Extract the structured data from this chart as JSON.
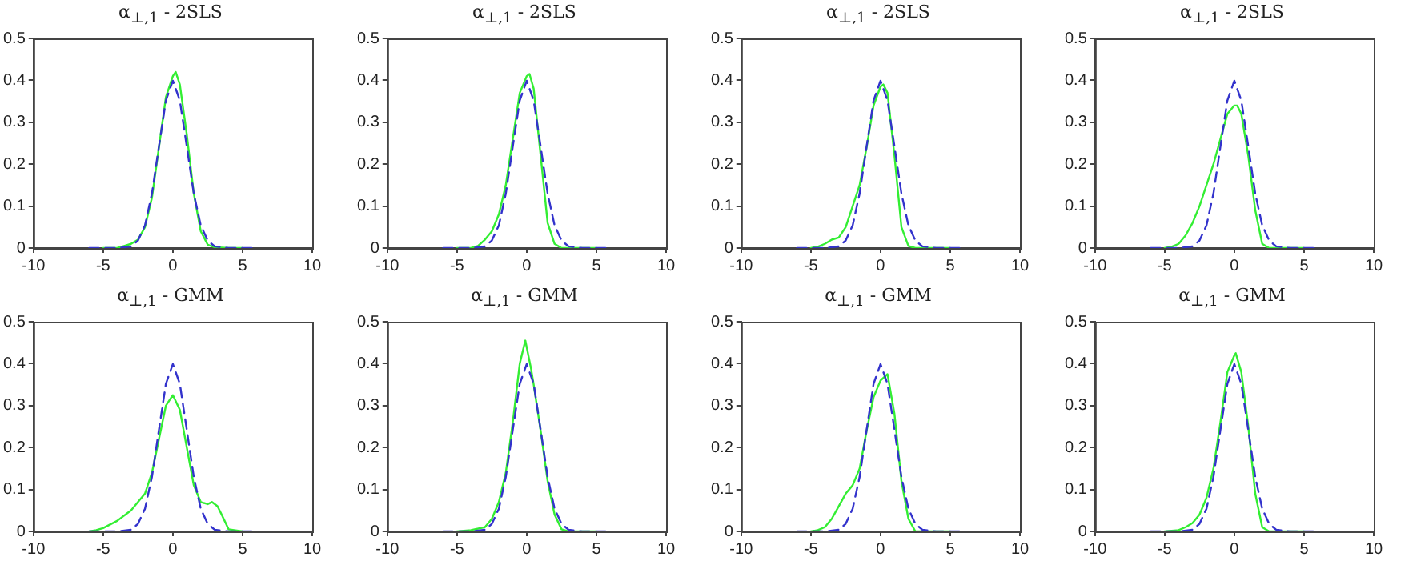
{
  "chart_data": [
    {
      "type": "line",
      "title": "α$_{⊥,1}$ - 2SLS",
      "xlim": [
        -10,
        10
      ],
      "xticks": [
        -10,
        -5,
        0,
        5,
        10
      ],
      "ylim": [
        0,
        0.5
      ],
      "yticks": [
        0,
        0.1,
        0.2,
        0.3,
        0.4,
        0.5
      ],
      "grid": false,
      "marker": "none",
      "series": [
        {
          "color": "#3333cc",
          "line_style": "dashed",
          "x": [
            -6,
            -5,
            -4,
            -3,
            -2.5,
            -2,
            -1.5,
            -1,
            -0.5,
            0,
            0.5,
            1,
            1.5,
            2,
            2.5,
            3,
            4,
            5,
            6
          ],
          "values": [
            0,
            0,
            0,
            0.004,
            0.018,
            0.054,
            0.13,
            0.242,
            0.352,
            0.399,
            0.352,
            0.242,
            0.13,
            0.054,
            0.018,
            0.004,
            0,
            0,
            0
          ]
        },
        {
          "color": "#33ee33",
          "line_style": "solid",
          "x": [
            -5,
            -4,
            -3.5,
            -3,
            -2.5,
            -2,
            -1.5,
            -1,
            -0.5,
            0,
            0.2,
            0.5,
            1,
            1.5,
            2,
            2.5,
            3,
            4,
            5
          ],
          "values": [
            0,
            0,
            0.005,
            0.01,
            0.02,
            0.05,
            0.12,
            0.24,
            0.36,
            0.41,
            0.42,
            0.39,
            0.27,
            0.13,
            0.04,
            0.008,
            0.002,
            0,
            0
          ]
        }
      ]
    },
    {
      "type": "line",
      "title": "α$_{⊥,1}$ - 2SLS",
      "xlim": [
        -10,
        10
      ],
      "xticks": [
        -10,
        -5,
        0,
        5,
        10
      ],
      "ylim": [
        0,
        0.5
      ],
      "yticks": [
        0,
        0.1,
        0.2,
        0.3,
        0.4,
        0.5
      ],
      "grid": false,
      "marker": "none",
      "series": [
        {
          "color": "#3333cc",
          "line_style": "dashed",
          "x": [
            -6,
            -5,
            -4,
            -3,
            -2.5,
            -2,
            -1.5,
            -1,
            -0.5,
            0,
            0.5,
            1,
            1.5,
            2,
            2.5,
            3,
            4,
            5,
            6
          ],
          "values": [
            0,
            0,
            0,
            0.004,
            0.018,
            0.054,
            0.13,
            0.242,
            0.352,
            0.399,
            0.352,
            0.242,
            0.13,
            0.054,
            0.018,
            0.004,
            0,
            0,
            0
          ]
        },
        {
          "color": "#33ee33",
          "line_style": "solid",
          "x": [
            -5,
            -4,
            -3.5,
            -3,
            -2.5,
            -2,
            -1.5,
            -1,
            -0.5,
            0,
            0.2,
            0.5,
            1,
            1.5,
            2,
            2.5,
            3,
            5
          ],
          "values": [
            0,
            0,
            0.005,
            0.02,
            0.04,
            0.08,
            0.15,
            0.26,
            0.37,
            0.41,
            0.415,
            0.38,
            0.22,
            0.06,
            0.01,
            0,
            0,
            0
          ]
        }
      ]
    },
    {
      "type": "line",
      "title": "α$_{⊥,1}$ - 2SLS",
      "xlim": [
        -10,
        10
      ],
      "xticks": [
        -10,
        -5,
        0,
        5,
        10
      ],
      "ylim": [
        0,
        0.5
      ],
      "yticks": [
        0,
        0.1,
        0.2,
        0.3,
        0.4,
        0.5
      ],
      "grid": false,
      "marker": "none",
      "series": [
        {
          "color": "#3333cc",
          "line_style": "dashed",
          "x": [
            -6,
            -5,
            -4,
            -3,
            -2.5,
            -2,
            -1.5,
            -1,
            -0.5,
            0,
            0.5,
            1,
            1.5,
            2,
            2.5,
            3,
            4,
            5,
            6
          ],
          "values": [
            0,
            0,
            0,
            0.004,
            0.018,
            0.054,
            0.13,
            0.242,
            0.352,
            0.399,
            0.352,
            0.242,
            0.13,
            0.054,
            0.018,
            0.004,
            0,
            0,
            0
          ]
        },
        {
          "color": "#33ee33",
          "line_style": "solid",
          "x": [
            -5,
            -4.5,
            -4,
            -3.5,
            -3,
            -2.5,
            -2,
            -1.5,
            -1,
            -0.5,
            0,
            0.2,
            0.5,
            1,
            1.5,
            2,
            2.5,
            5
          ],
          "values": [
            0,
            0.003,
            0.01,
            0.02,
            0.025,
            0.05,
            0.1,
            0.15,
            0.24,
            0.34,
            0.385,
            0.39,
            0.37,
            0.22,
            0.05,
            0.005,
            0,
            0
          ]
        }
      ]
    },
    {
      "type": "line",
      "title": "α$_{⊥,1}$ - 2SLS",
      "xlim": [
        -10,
        10
      ],
      "xticks": [
        -10,
        -5,
        0,
        5,
        10
      ],
      "ylim": [
        0,
        0.5
      ],
      "yticks": [
        0,
        0.1,
        0.2,
        0.3,
        0.4,
        0.5
      ],
      "grid": false,
      "marker": "none",
      "series": [
        {
          "color": "#3333cc",
          "line_style": "dashed",
          "x": [
            -6,
            -5,
            -4,
            -3,
            -2.5,
            -2,
            -1.5,
            -1,
            -0.5,
            0,
            0.5,
            1,
            1.5,
            2,
            2.5,
            3,
            4,
            5,
            6
          ],
          "values": [
            0,
            0,
            0,
            0.004,
            0.018,
            0.054,
            0.13,
            0.242,
            0.352,
            0.399,
            0.352,
            0.242,
            0.13,
            0.054,
            0.018,
            0.004,
            0,
            0,
            0
          ]
        },
        {
          "color": "#33ee33",
          "line_style": "solid",
          "x": [
            -5,
            -4.5,
            -4,
            -3.5,
            -3,
            -2.5,
            -2,
            -1.5,
            -1,
            -0.5,
            0,
            0.2,
            0.5,
            1,
            1.5,
            2,
            2.5,
            5
          ],
          "values": [
            0,
            0.003,
            0.01,
            0.03,
            0.06,
            0.1,
            0.15,
            0.2,
            0.26,
            0.32,
            0.34,
            0.34,
            0.32,
            0.22,
            0.09,
            0.01,
            0,
            0
          ]
        }
      ]
    },
    {
      "type": "line",
      "title": "α$_{⊥,1}$ - GMM",
      "xlim": [
        -10,
        10
      ],
      "xticks": [
        -10,
        -5,
        0,
        5,
        10
      ],
      "ylim": [
        0,
        0.5
      ],
      "yticks": [
        0,
        0.1,
        0.2,
        0.3,
        0.4,
        0.5
      ],
      "grid": false,
      "marker": "none",
      "series": [
        {
          "color": "#3333cc",
          "line_style": "dashed",
          "x": [
            -6,
            -5,
            -4,
            -3,
            -2.5,
            -2,
            -1.5,
            -1,
            -0.5,
            0,
            0.5,
            1,
            1.5,
            2,
            2.5,
            3,
            4,
            5,
            6
          ],
          "values": [
            0,
            0,
            0,
            0.004,
            0.018,
            0.054,
            0.13,
            0.242,
            0.352,
            0.399,
            0.352,
            0.242,
            0.13,
            0.054,
            0.018,
            0.004,
            0,
            0,
            0
          ]
        },
        {
          "color": "#33ee33",
          "line_style": "solid",
          "x": [
            -6,
            -5.5,
            -5,
            -4,
            -3,
            -2.5,
            -2,
            -1.5,
            -1,
            -0.5,
            0,
            0.5,
            1,
            1.5,
            2,
            2.5,
            2.8,
            3.2,
            3.5,
            4,
            5
          ],
          "values": [
            0,
            0.003,
            0.008,
            0.025,
            0.05,
            0.07,
            0.09,
            0.14,
            0.22,
            0.3,
            0.325,
            0.29,
            0.2,
            0.11,
            0.07,
            0.065,
            0.07,
            0.06,
            0.04,
            0.005,
            0
          ]
        }
      ]
    },
    {
      "type": "line",
      "title": "α$_{⊥,1}$ - GMM",
      "xlim": [
        -10,
        10
      ],
      "xticks": [
        -10,
        -5,
        0,
        5,
        10
      ],
      "ylim": [
        0,
        0.5
      ],
      "yticks": [
        0,
        0.1,
        0.2,
        0.3,
        0.4,
        0.5
      ],
      "grid": false,
      "marker": "none",
      "series": [
        {
          "color": "#3333cc",
          "line_style": "dashed",
          "x": [
            -6,
            -5,
            -4,
            -3,
            -2.5,
            -2,
            -1.5,
            -1,
            -0.5,
            0,
            0.5,
            1,
            1.5,
            2,
            2.5,
            3,
            4,
            5,
            6
          ],
          "values": [
            0,
            0,
            0,
            0.004,
            0.018,
            0.054,
            0.13,
            0.242,
            0.352,
            0.399,
            0.352,
            0.242,
            0.13,
            0.054,
            0.018,
            0.004,
            0,
            0,
            0
          ]
        },
        {
          "color": "#33ee33",
          "line_style": "solid",
          "x": [
            -5,
            -4,
            -3,
            -2.5,
            -2,
            -1.5,
            -1,
            -0.5,
            -0.1,
            0.3,
            0.5,
            1,
            1.5,
            2,
            2.5,
            3,
            5
          ],
          "values": [
            0,
            0.003,
            0.01,
            0.03,
            0.07,
            0.14,
            0.26,
            0.4,
            0.455,
            0.39,
            0.35,
            0.24,
            0.12,
            0.04,
            0.005,
            0,
            0
          ]
        }
      ]
    },
    {
      "type": "line",
      "title": "α$_{⊥,1}$ - GMM",
      "xlim": [
        -10,
        10
      ],
      "xticks": [
        -10,
        -5,
        0,
        5,
        10
      ],
      "ylim": [
        0,
        0.5
      ],
      "yticks": [
        0,
        0.1,
        0.2,
        0.3,
        0.4,
        0.5
      ],
      "grid": false,
      "marker": "none",
      "series": [
        {
          "color": "#3333cc",
          "line_style": "dashed",
          "x": [
            -6,
            -5,
            -4,
            -3,
            -2.5,
            -2,
            -1.5,
            -1,
            -0.5,
            0,
            0.5,
            1,
            1.5,
            2,
            2.5,
            3,
            4,
            5,
            6
          ],
          "values": [
            0,
            0,
            0,
            0.004,
            0.018,
            0.054,
            0.13,
            0.242,
            0.352,
            0.399,
            0.352,
            0.242,
            0.13,
            0.054,
            0.018,
            0.004,
            0,
            0,
            0
          ]
        },
        {
          "color": "#33ee33",
          "line_style": "solid",
          "x": [
            -5,
            -4.5,
            -4,
            -3.5,
            -3,
            -2.5,
            -2,
            -1.5,
            -1,
            -0.5,
            0,
            0.5,
            1,
            1.5,
            2,
            2.5,
            5
          ],
          "values": [
            0,
            0.003,
            0.01,
            0.03,
            0.06,
            0.09,
            0.11,
            0.15,
            0.24,
            0.32,
            0.36,
            0.375,
            0.28,
            0.12,
            0.03,
            0,
            0
          ]
        }
      ]
    },
    {
      "type": "line",
      "title": "α$_{⊥,1}$ - GMM",
      "xlim": [
        -10,
        10
      ],
      "xticks": [
        -10,
        -5,
        0,
        5,
        10
      ],
      "ylim": [
        0,
        0.5
      ],
      "yticks": [
        0,
        0.1,
        0.2,
        0.3,
        0.4,
        0.5
      ],
      "grid": false,
      "marker": "none",
      "series": [
        {
          "color": "#3333cc",
          "line_style": "dashed",
          "x": [
            -6,
            -5,
            -4,
            -3,
            -2.5,
            -2,
            -1.5,
            -1,
            -0.5,
            0,
            0.5,
            1,
            1.5,
            2,
            2.5,
            3,
            4,
            5,
            6
          ],
          "values": [
            0,
            0,
            0,
            0.004,
            0.018,
            0.054,
            0.13,
            0.242,
            0.352,
            0.399,
            0.352,
            0.242,
            0.13,
            0.054,
            0.018,
            0.004,
            0,
            0,
            0
          ]
        },
        {
          "color": "#33ee33",
          "line_style": "solid",
          "x": [
            -5,
            -4,
            -3.5,
            -3,
            -2.5,
            -2,
            -1.5,
            -1,
            -0.5,
            0,
            0.1,
            0.5,
            1,
            1.5,
            2,
            2.5,
            5
          ],
          "values": [
            0,
            0.003,
            0.01,
            0.02,
            0.04,
            0.08,
            0.15,
            0.26,
            0.38,
            0.42,
            0.425,
            0.38,
            0.25,
            0.09,
            0.01,
            0,
            0
          ]
        }
      ]
    }
  ]
}
